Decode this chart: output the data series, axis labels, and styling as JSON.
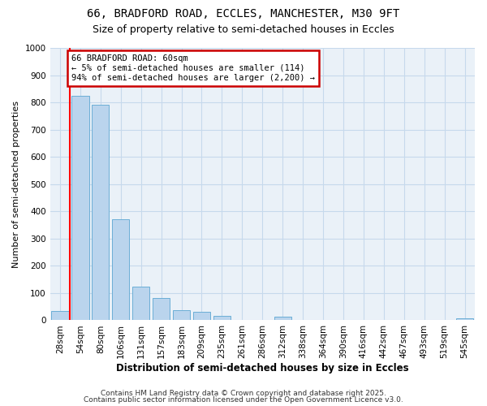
{
  "title1": "66, BRADFORD ROAD, ECCLES, MANCHESTER, M30 9FT",
  "title2": "Size of property relative to semi-detached houses in Eccles",
  "xlabel": "Distribution of semi-detached houses by size in Eccles",
  "ylabel": "Number of semi-detached properties",
  "categories": [
    "28sqm",
    "54sqm",
    "80sqm",
    "106sqm",
    "131sqm",
    "157sqm",
    "183sqm",
    "209sqm",
    "235sqm",
    "261sqm",
    "286sqm",
    "312sqm",
    "338sqm",
    "364sqm",
    "390sqm",
    "416sqm",
    "442sqm",
    "467sqm",
    "493sqm",
    "519sqm",
    "545sqm"
  ],
  "values": [
    35,
    825,
    790,
    370,
    125,
    83,
    37,
    32,
    15,
    0,
    0,
    12,
    0,
    0,
    0,
    0,
    0,
    0,
    0,
    0,
    8
  ],
  "bar_color": "#bad4ed",
  "bar_edge_color": "#6baed6",
  "grid_color": "#c6d9ec",
  "background_color": "#eaf1f8",
  "annotation_line1": "66 BRADFORD ROAD: 60sqm",
  "annotation_line2": "← 5% of semi-detached houses are smaller (114)",
  "annotation_line3": "94% of semi-detached houses are larger (2,200) →",
  "annotation_box_edgecolor": "#cc0000",
  "red_line_x": 0.5,
  "ylim": [
    0,
    1000
  ],
  "yticks": [
    0,
    100,
    200,
    300,
    400,
    500,
    600,
    700,
    800,
    900,
    1000
  ],
  "footer1": "Contains HM Land Registry data © Crown copyright and database right 2025.",
  "footer2": "Contains public sector information licensed under the Open Government Licence v3.0.",
  "title1_fontsize": 10,
  "title2_fontsize": 9,
  "ylabel_fontsize": 8,
  "xlabel_fontsize": 8.5,
  "tick_fontsize": 7.5,
  "footer_fontsize": 6.5
}
